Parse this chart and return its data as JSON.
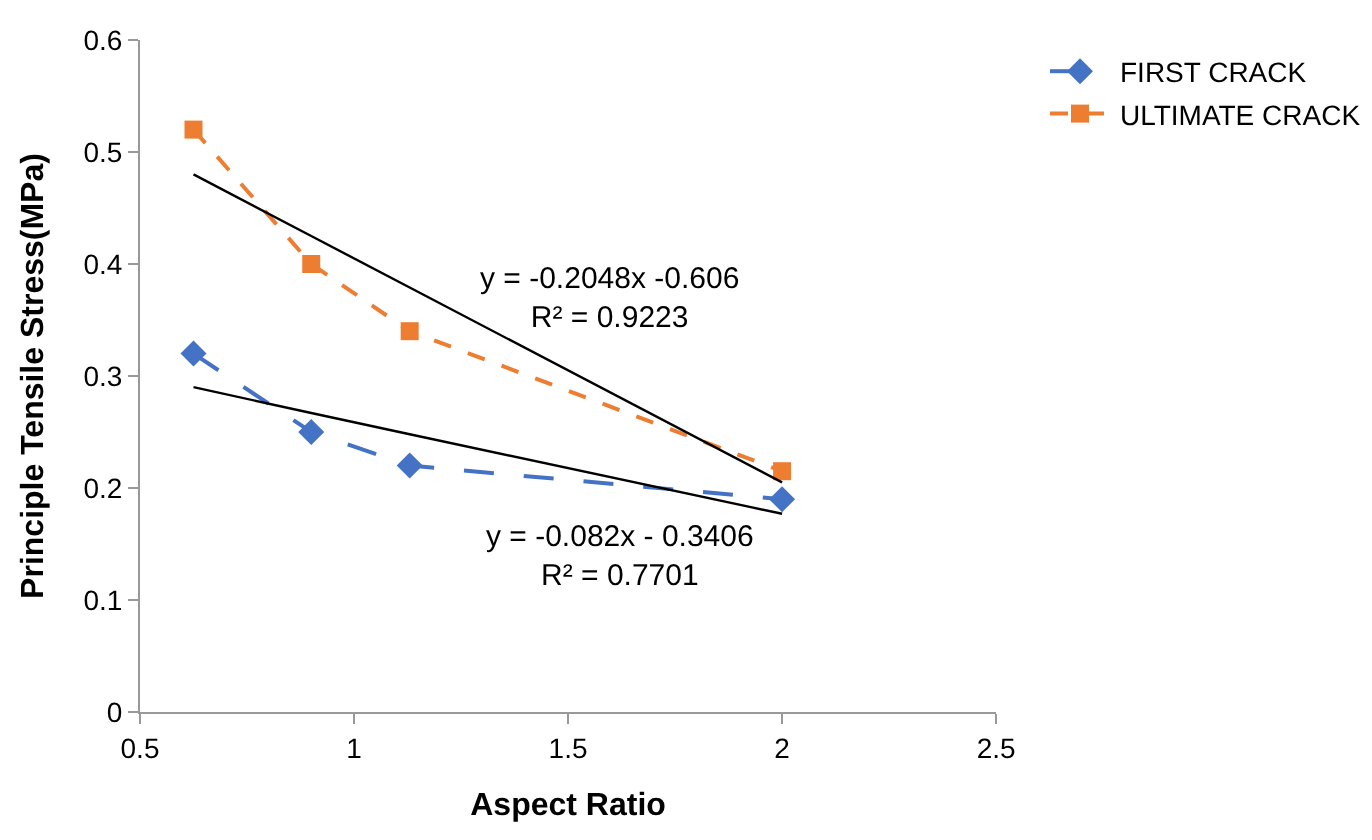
{
  "chart_data": {
    "type": "line",
    "xlabel": "Aspect Ratio",
    "ylabel": "Principle Tensile Stress(MPa)",
    "x": [
      0.625,
      0.9,
      1.13,
      2.0
    ],
    "xlim": [
      0.5,
      2.5
    ],
    "xticks": [
      0.5,
      1,
      1.5,
      2,
      2.5
    ],
    "ylim": [
      0,
      0.6
    ],
    "yticks": [
      0,
      0.1,
      0.2,
      0.3,
      0.4,
      0.5,
      0.6
    ],
    "grid": false,
    "legend": "top right",
    "series": [
      {
        "name": "FIRST CRACK",
        "color": "#4472c4",
        "values": [
          0.32,
          0.25,
          0.22,
          0.19
        ],
        "marker": "diamond",
        "line_style": "dashed"
      },
      {
        "name": "ULTIMATE CRACK",
        "color": "#ed7d31",
        "values": [
          0.52,
          0.4,
          0.34,
          0.215
        ],
        "marker": "square",
        "line_style": "dotted"
      },
      {
        "type": "line",
        "color": "#000000",
        "values": [
          0.29,
          0.267,
          0.248,
          0.177
        ],
        "marker": "none",
        "line_style": "solid"
      },
      {
        "type": "line",
        "color": "#000000",
        "values": [
          0.48,
          0.425,
          0.379,
          0.205
        ],
        "marker": "none",
        "line_style": "solid"
      }
    ],
    "annotations": [
      "y = -0.2048x -0.606\nR² = 0.9223",
      "y = -0.082x - 0.3406\nR² = 0.7701"
    ]
  }
}
